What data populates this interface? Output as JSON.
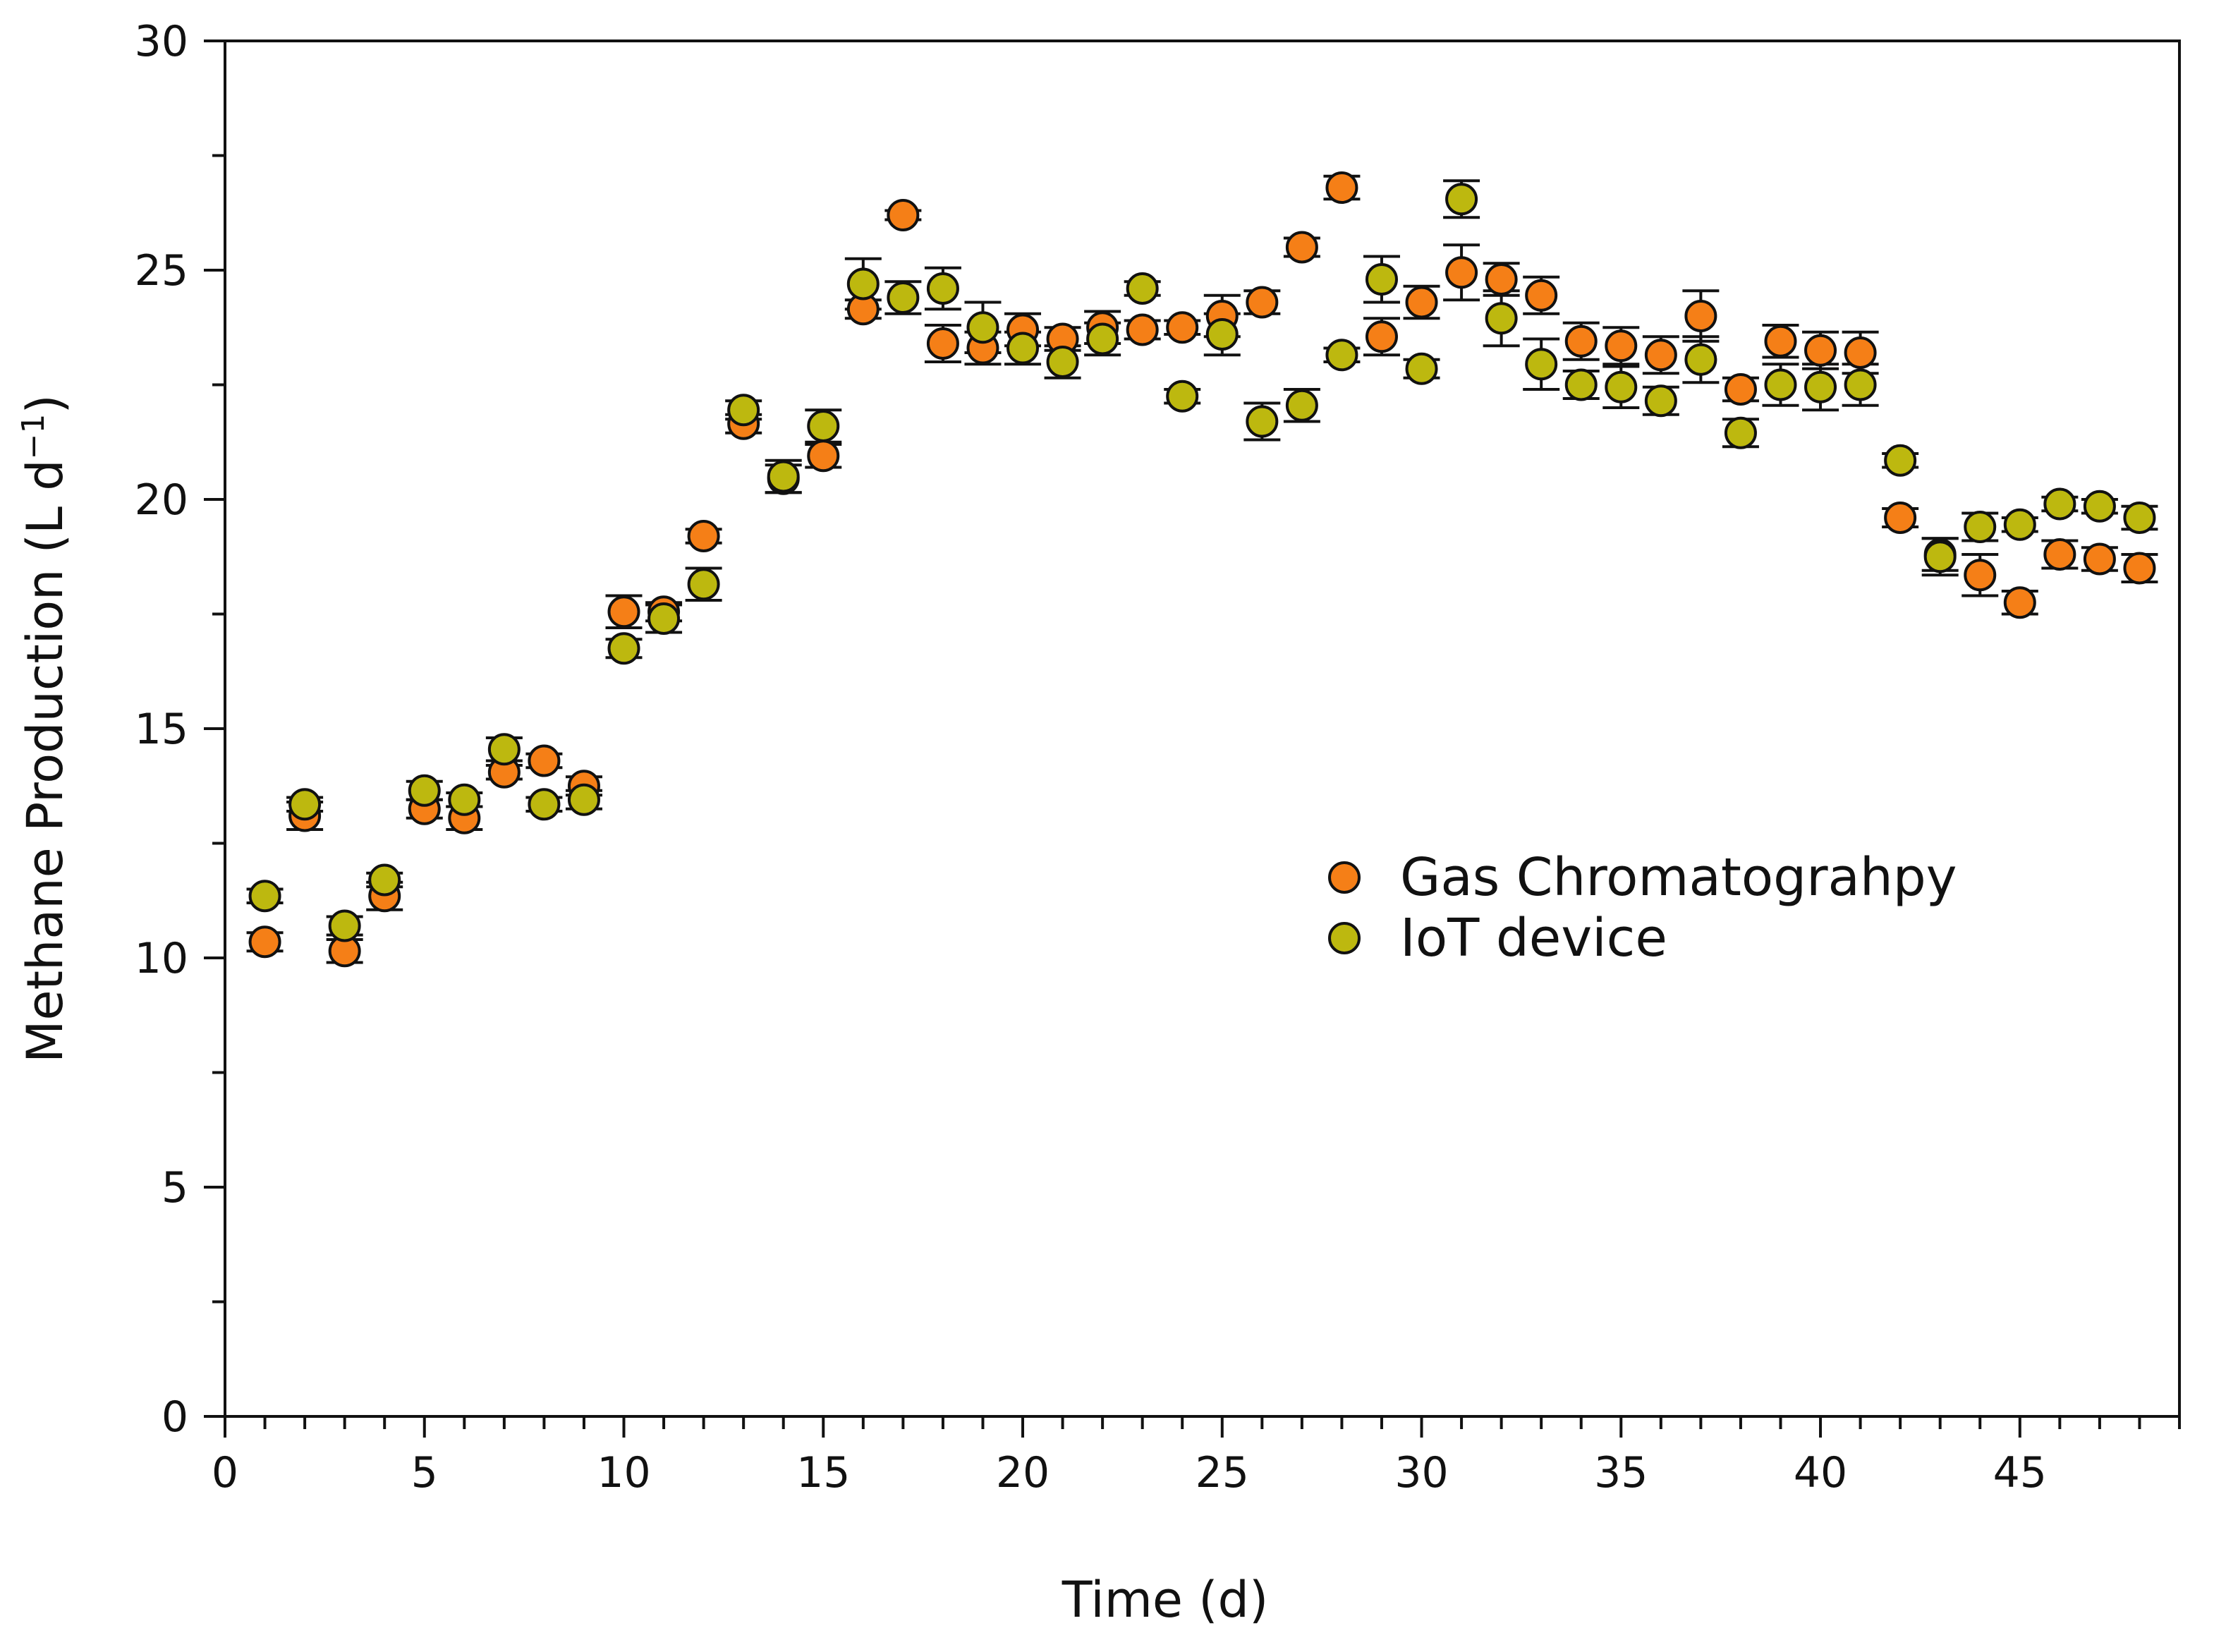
{
  "chart_data": {
    "type": "scatter",
    "title": "",
    "xlabel": "Time (d)",
    "ylabel_main": "Methane Production (L d",
    "ylabel_sup": "−1",
    "ylabel_close": ")",
    "xlim": [
      0,
      49
    ],
    "ylim": [
      0,
      30
    ],
    "x_major_ticks": [
      0,
      5,
      10,
      15,
      20,
      25,
      30,
      35,
      40,
      45
    ],
    "x_tick_labels": [
      "0",
      "5",
      "10",
      "15",
      "20",
      "25",
      "30",
      "35",
      "40",
      "45"
    ],
    "y_major_ticks": [
      0,
      5,
      10,
      15,
      20,
      25,
      30
    ],
    "y_tick_labels": [
      "0",
      "5",
      "10",
      "15",
      "20",
      "25",
      "30"
    ],
    "grid": false,
    "legend_position": "middle-right",
    "series": [
      {
        "name": "Gas Chromatograhpy",
        "color": "#f57f17",
        "x": [
          1,
          2,
          3,
          4,
          5,
          6,
          7,
          8,
          9,
          10,
          11,
          12,
          13,
          14,
          15,
          16,
          17,
          18,
          19,
          20,
          21,
          22,
          23,
          24,
          25,
          26,
          27,
          28,
          29,
          30,
          31,
          32,
          33,
          34,
          35,
          36,
          37,
          38,
          39,
          40,
          41,
          42,
          43,
          44,
          45,
          46,
          47,
          48
        ],
        "y": [
          10.35,
          13.1,
          10.15,
          11.35,
          13.25,
          13.05,
          14.05,
          14.3,
          13.75,
          17.55,
          17.55,
          19.2,
          21.65,
          20.45,
          20.95,
          24.15,
          26.2,
          23.4,
          23.3,
          23.7,
          23.5,
          23.75,
          23.7,
          23.75,
          24.0,
          24.3,
          25.5,
          26.8,
          23.55,
          24.3,
          24.95,
          24.8,
          24.45,
          23.45,
          23.35,
          23.15,
          24.0,
          22.4,
          23.45,
          23.25,
          23.2,
          19.6,
          18.8,
          18.35,
          17.75,
          18.8,
          18.7,
          18.5
        ],
        "err": [
          0.2,
          0.3,
          0.25,
          0.3,
          0.2,
          0.25,
          0.15,
          0.15,
          0.2,
          0.35,
          0.2,
          0.15,
          0.2,
          0.3,
          0.25,
          0.2,
          0.1,
          0.4,
          0.35,
          0.35,
          0.25,
          0.35,
          0.2,
          0.15,
          0.45,
          0.25,
          0.2,
          0.25,
          0.4,
          0.35,
          0.6,
          0.35,
          0.4,
          0.4,
          0.4,
          0.4,
          0.55,
          0.25,
          0.35,
          0.4,
          0.45,
          0.2,
          0.35,
          0.45,
          0.25,
          0.3,
          0.25,
          0.3
        ]
      },
      {
        "name": "IoT device",
        "color": "#bdb80f",
        "x": [
          1,
          2,
          3,
          4,
          5,
          6,
          7,
          8,
          9,
          10,
          11,
          12,
          13,
          14,
          15,
          16,
          17,
          18,
          19,
          20,
          21,
          22,
          23,
          24,
          25,
          26,
          27,
          28,
          29,
          30,
          31,
          32,
          33,
          34,
          35,
          36,
          37,
          38,
          39,
          40,
          41,
          42,
          43,
          44,
          45,
          46,
          47,
          48
        ],
        "y": [
          11.35,
          13.35,
          10.7,
          11.7,
          13.65,
          13.45,
          14.55,
          13.35,
          13.45,
          16.75,
          17.4,
          18.15,
          21.95,
          20.5,
          21.6,
          24.7,
          24.4,
          24.6,
          23.75,
          23.3,
          23.0,
          23.5,
          24.6,
          22.25,
          23.6,
          21.7,
          22.05,
          23.15,
          24.8,
          22.85,
          26.55,
          23.95,
          22.95,
          22.5,
          22.45,
          22.15,
          23.05,
          21.45,
          22.5,
          22.45,
          22.5,
          20.85,
          18.75,
          19.4,
          19.45,
          19.9,
          19.85,
          19.6
        ],
        "err": [
          0.15,
          0.15,
          0.2,
          0.15,
          0.2,
          0.15,
          0.25,
          0.15,
          0.2,
          0.2,
          0.3,
          0.35,
          0.2,
          0.35,
          0.35,
          0.55,
          0.35,
          0.45,
          0.55,
          0.35,
          0.35,
          0.35,
          0.15,
          0.15,
          0.45,
          0.4,
          0.35,
          0.15,
          0.5,
          0.2,
          0.4,
          0.6,
          0.55,
          0.3,
          0.45,
          0.3,
          0.5,
          0.3,
          0.45,
          0.5,
          0.45,
          0.15,
          0.4,
          0.3,
          0.15,
          0.15,
          0.15,
          0.25
        ]
      }
    ]
  }
}
